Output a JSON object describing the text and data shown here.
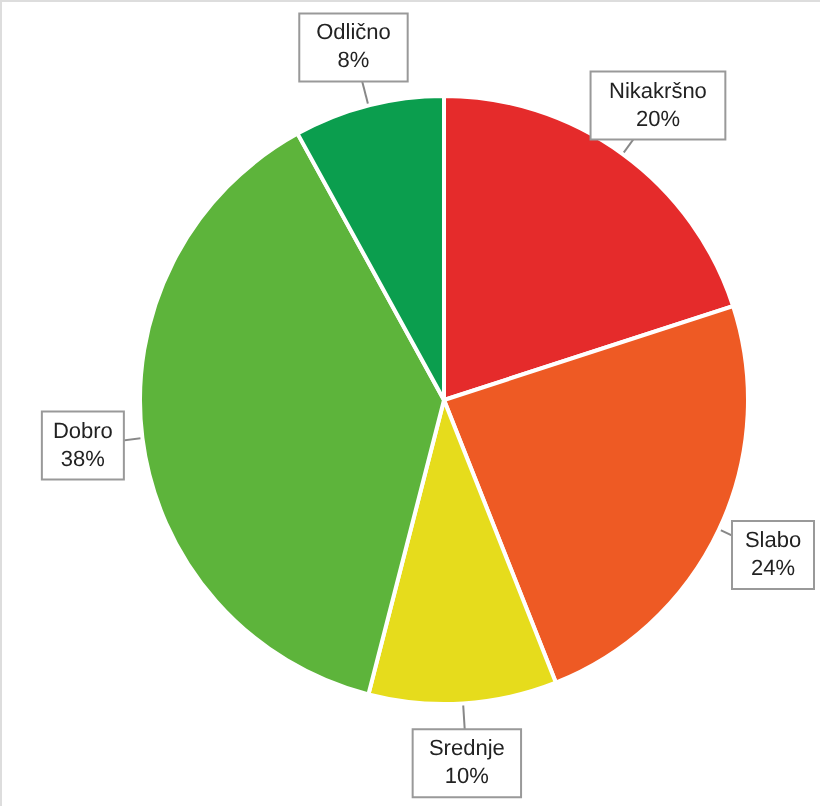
{
  "chart_data": {
    "type": "pie",
    "categories": [
      "Nikakršno",
      "Slabo",
      "Srednje",
      "Dobro",
      "Odlično"
    ],
    "values": [
      20,
      24,
      10,
      38,
      8
    ],
    "value_labels": [
      "20%",
      "24%",
      "10%",
      "38%",
      "8%"
    ],
    "colors": [
      "#e52b2b",
      "#ee5a24",
      "#e6dc1c",
      "#5db43b",
      "#0b9e4e"
    ]
  }
}
